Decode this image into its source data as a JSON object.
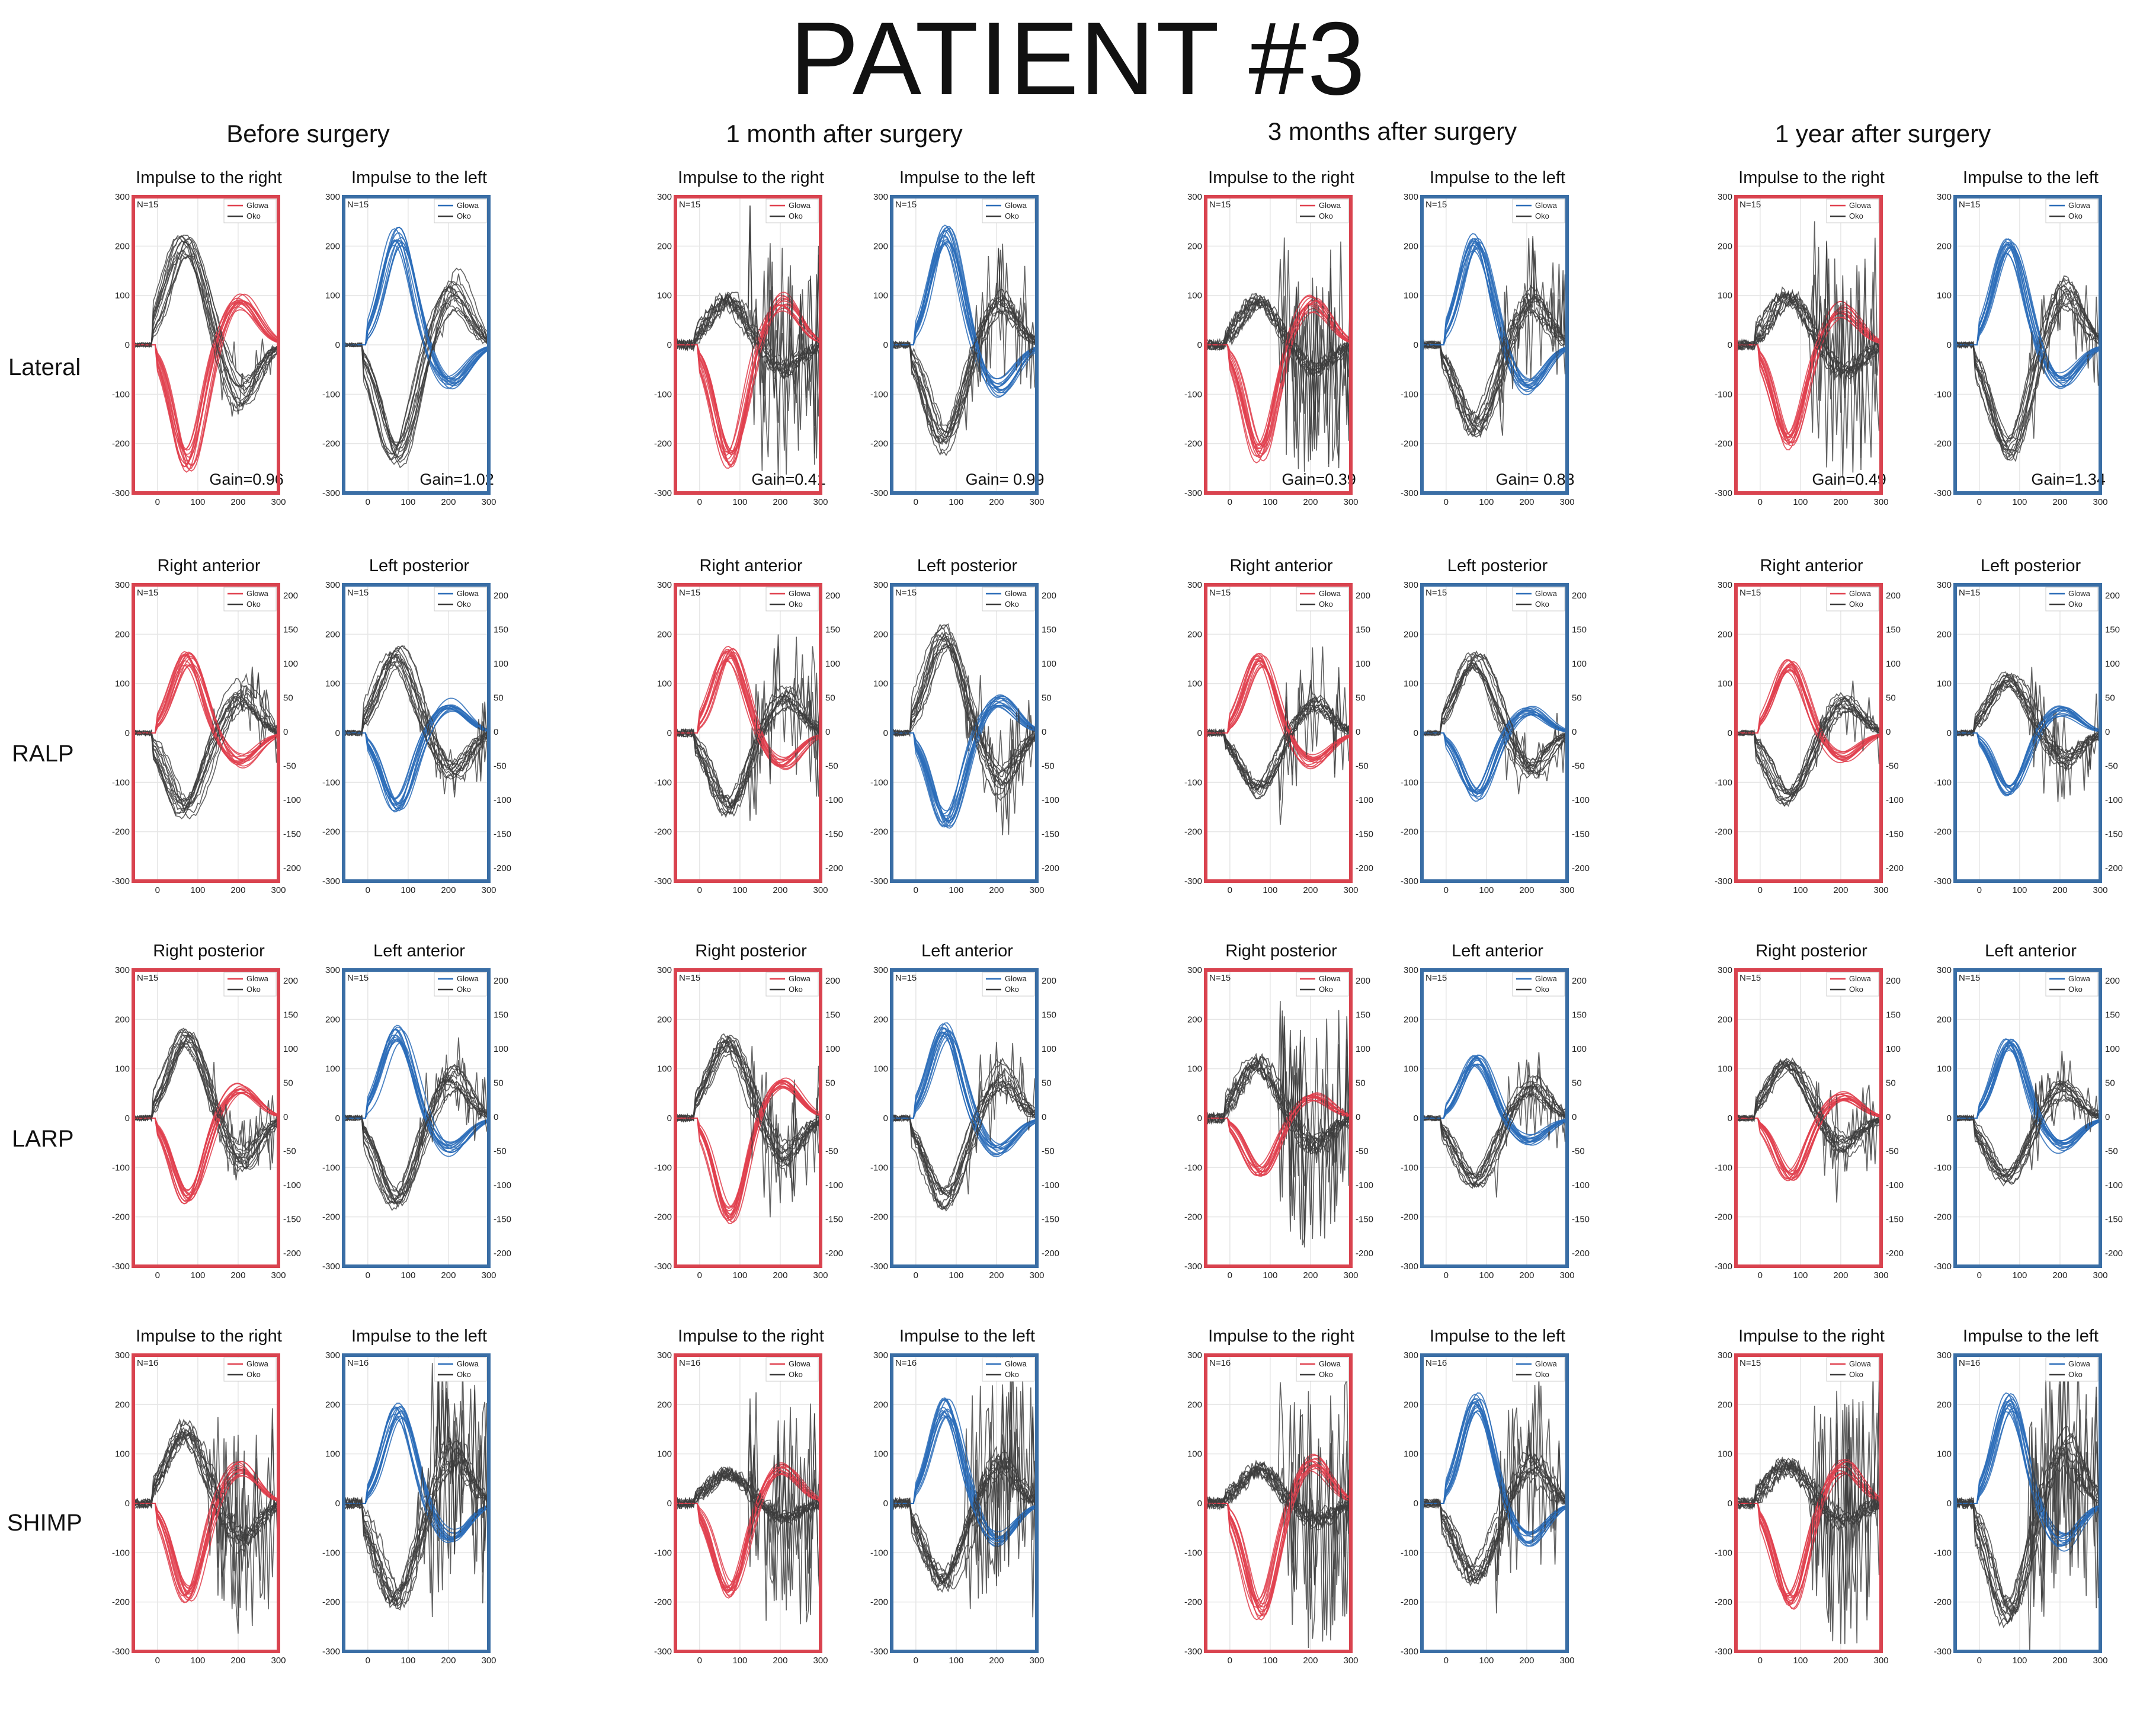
{
  "title": "PATIENT #3",
  "time_points": [
    "Before surgery",
    "1 month after surgery",
    "3 months after surgery",
    "1 year after surgery"
  ],
  "row_labels": [
    "Lateral",
    "RALP",
    "LARP",
    "SHIMP"
  ],
  "legend": {
    "head": "Glowa",
    "eye": "Oko"
  },
  "colors": {
    "right_frame": "#d9434f",
    "left_frame": "#3a6ea5",
    "head_right": "#e0404e",
    "head_left": "#2a6cb8",
    "eye": "#3c3c3c",
    "grid": "#e6e6e6"
  },
  "chart_data": {
    "type": "line",
    "x_ticks": [
      0,
      100,
      200,
      300
    ],
    "y_ticks": [
      -300,
      -200,
      -100,
      0,
      100,
      200,
      300
    ],
    "y2_ticks": [
      -200,
      -150,
      -100,
      -50,
      0,
      50,
      100,
      150,
      200
    ],
    "xlim": [
      -60,
      300
    ],
    "ylim": [
      -300,
      300
    ],
    "panels": [
      {
        "row": "Lateral",
        "time": "Before surgery",
        "title": "Impulse to the right",
        "n": "N=15",
        "side": "right",
        "head_peak": -240,
        "eye_peak": 210,
        "gain": "Gain=0.96",
        "noise": 0.2
      },
      {
        "row": "Lateral",
        "time": "Before surgery",
        "title": "Impulse to the left",
        "n": "N=15",
        "side": "left",
        "head_peak": 225,
        "eye_peak": -230,
        "gain": "Gain=1.02",
        "noise": 0.15
      },
      {
        "row": "Lateral",
        "time": "1 month after surgery",
        "title": "Impulse to the right",
        "n": "N=15",
        "side": "right",
        "head_peak": -235,
        "eye_peak": 90,
        "gain": "Gain=0.41",
        "noise": 0.9
      },
      {
        "row": "Lateral",
        "time": "1 month after surgery",
        "title": "Impulse to the left",
        "n": "N=15",
        "side": "left",
        "head_peak": 230,
        "eye_peak": -200,
        "gain": "Gain= 0.99",
        "noise": 0.5
      },
      {
        "row": "Lateral",
        "time": "3 months after surgery",
        "title": "Impulse to the right",
        "n": "N=15",
        "side": "right",
        "head_peak": -230,
        "eye_peak": 90,
        "gain": "Gain=0.39",
        "noise": 0.9
      },
      {
        "row": "Lateral",
        "time": "3 months after surgery",
        "title": "Impulse to the left",
        "n": "N=15",
        "side": "left",
        "head_peak": 210,
        "eye_peak": -170,
        "gain": "Gain= 0.83",
        "noise": 0.6
      },
      {
        "row": "Lateral",
        "time": "1 year after surgery",
        "title": "Impulse to the right",
        "n": "N=15",
        "side": "right",
        "head_peak": -200,
        "eye_peak": 100,
        "gain": "Gain=0.49",
        "noise": 0.9
      },
      {
        "row": "Lateral",
        "time": "1 year after surgery",
        "title": "Impulse to the left",
        "n": "N=15",
        "side": "left",
        "head_peak": 200,
        "eye_peak": -220,
        "gain": "Gain=1.34",
        "noise": 0.4
      },
      {
        "row": "RALP",
        "time": "Before surgery",
        "title": "Right anterior",
        "n": "N=15",
        "side": "right",
        "head_peak": 155,
        "eye_peak": -160,
        "gain": "",
        "noise": 0.3,
        "y2": true
      },
      {
        "row": "RALP",
        "time": "Before surgery",
        "title": "Left posterior",
        "n": "N=15",
        "side": "left",
        "head_peak": -150,
        "eye_peak": 160,
        "gain": "",
        "noise": 0.3,
        "y2": true
      },
      {
        "row": "RALP",
        "time": "1 month after surgery",
        "title": "Right anterior",
        "n": "N=15",
        "side": "right",
        "head_peak": 165,
        "eye_peak": -150,
        "gain": "",
        "noise": 0.6,
        "y2": true
      },
      {
        "row": "RALP",
        "time": "1 month after surgery",
        "title": "Left posterior",
        "n": "N=15",
        "side": "left",
        "head_peak": -180,
        "eye_peak": 200,
        "gain": "",
        "noise": 0.4,
        "y2": true
      },
      {
        "row": "RALP",
        "time": "3 months after surgery",
        "title": "Right anterior",
        "n": "N=15",
        "side": "right",
        "head_peak": 150,
        "eye_peak": -120,
        "gain": "",
        "noise": 0.5,
        "y2": true
      },
      {
        "row": "RALP",
        "time": "3 months after surgery",
        "title": "Left posterior",
        "n": "N=15",
        "side": "left",
        "head_peak": -130,
        "eye_peak": 150,
        "gain": "",
        "noise": 0.3,
        "y2": true
      },
      {
        "row": "RALP",
        "time": "1 year after surgery",
        "title": "Right anterior",
        "n": "N=15",
        "side": "right",
        "head_peak": 140,
        "eye_peak": -140,
        "gain": "",
        "noise": 0.3,
        "y2": true
      },
      {
        "row": "RALP",
        "time": "1 year after surgery",
        "title": "Left posterior",
        "n": "N=15",
        "side": "left",
        "head_peak": -120,
        "eye_peak": 110,
        "gain": "",
        "noise": 0.4,
        "y2": true
      },
      {
        "row": "LARP",
        "time": "Before surgery",
        "title": "Right posterior",
        "n": "N=15",
        "side": "right",
        "head_peak": -165,
        "eye_peak": 165,
        "gain": "",
        "noise": 0.3,
        "y2": true
      },
      {
        "row": "LARP",
        "time": "Before surgery",
        "title": "Left anterior",
        "n": "N=15",
        "side": "left",
        "head_peak": 175,
        "eye_peak": -170,
        "gain": "",
        "noise": 0.3,
        "y2": true
      },
      {
        "row": "LARP",
        "time": "1 month after surgery",
        "title": "Right posterior",
        "n": "N=15",
        "side": "right",
        "head_peak": -200,
        "eye_peak": 150,
        "gain": "",
        "noise": 0.5,
        "y2": true
      },
      {
        "row": "LARP",
        "time": "1 month after surgery",
        "title": "Left anterior",
        "n": "N=15",
        "side": "left",
        "head_peak": 180,
        "eye_peak": -170,
        "gain": "",
        "noise": 0.4,
        "y2": true
      },
      {
        "row": "LARP",
        "time": "3 months after surgery",
        "title": "Right posterior",
        "n": "N=15",
        "side": "right",
        "head_peak": -110,
        "eye_peak": 110,
        "gain": "",
        "noise": 0.9,
        "y2": true
      },
      {
        "row": "LARP",
        "time": "3 months after surgery",
        "title": "Left anterior",
        "n": "N=15",
        "side": "left",
        "head_peak": 120,
        "eye_peak": -130,
        "gain": "",
        "noise": 0.3,
        "y2": true
      },
      {
        "row": "LARP",
        "time": "1 year after surgery",
        "title": "Right posterior",
        "n": "N=15",
        "side": "right",
        "head_peak": -120,
        "eye_peak": 110,
        "gain": "",
        "noise": 0.4,
        "y2": true
      },
      {
        "row": "LARP",
        "time": "1 year after surgery",
        "title": "Left anterior",
        "n": "N=15",
        "side": "left",
        "head_peak": 150,
        "eye_peak": -120,
        "gain": "",
        "noise": 0.3,
        "y2": true
      },
      {
        "row": "SHIMP",
        "time": "Before surgery",
        "title": "Impulse to the right",
        "n": "N=16",
        "side": "right",
        "head_peak": -190,
        "eye_peak": 150,
        "gain": "",
        "noise": 0.8
      },
      {
        "row": "SHIMP",
        "time": "Before surgery",
        "title": "Impulse to the left",
        "n": "N=16",
        "side": "left",
        "head_peak": 190,
        "eye_peak": -190,
        "gain": "",
        "noise": 0.9
      },
      {
        "row": "SHIMP",
        "time": "1 month after surgery",
        "title": "Impulse to the right",
        "n": "N=16",
        "side": "right",
        "head_peak": -180,
        "eye_peak": 60,
        "gain": "",
        "noise": 0.9
      },
      {
        "row": "SHIMP",
        "time": "1 month after surgery",
        "title": "Impulse to the left",
        "n": "N=16",
        "side": "left",
        "head_peak": 200,
        "eye_peak": -160,
        "gain": "",
        "noise": 0.9
      },
      {
        "row": "SHIMP",
        "time": "3 months after surgery",
        "title": "Impulse to the right",
        "n": "N=16",
        "side": "right",
        "head_peak": -220,
        "eye_peak": 70,
        "gain": "",
        "noise": 1.0
      },
      {
        "row": "SHIMP",
        "time": "3 months after surgery",
        "title": "Impulse to the left",
        "n": "N=16",
        "side": "left",
        "head_peak": 210,
        "eye_peak": -150,
        "gain": "",
        "noise": 0.7
      },
      {
        "row": "SHIMP",
        "time": "1 year after surgery",
        "title": "Impulse to the right",
        "n": "N=15",
        "side": "right",
        "head_peak": -200,
        "eye_peak": 80,
        "gain": "",
        "noise": 1.0
      },
      {
        "row": "SHIMP",
        "time": "1 year after surgery",
        "title": "Impulse to the left",
        "n": "N=16",
        "side": "left",
        "head_peak": 210,
        "eye_peak": -230,
        "gain": "",
        "noise": 0.9
      }
    ]
  }
}
